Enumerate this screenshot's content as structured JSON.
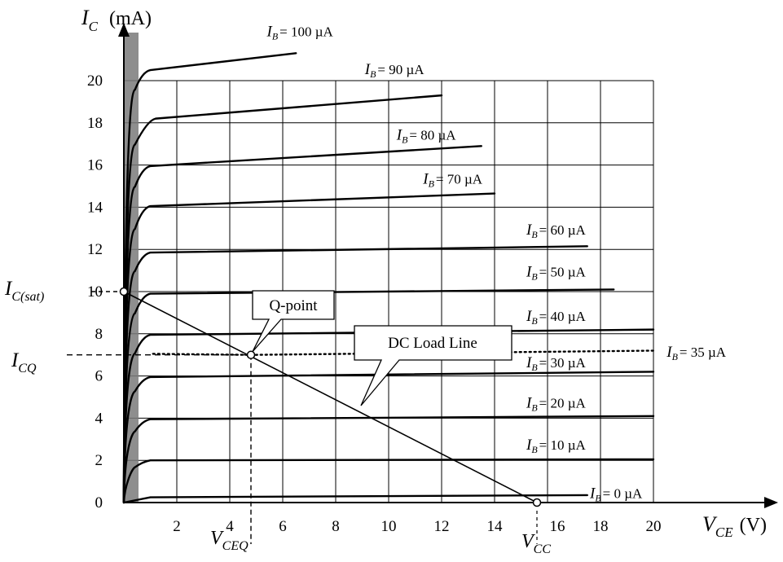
{
  "chart_data": {
    "type": "line",
    "title": "",
    "xlabel": {
      "symbol": "V",
      "subscript": "CE",
      "unit": "(V)"
    },
    "ylabel": {
      "symbol": "I",
      "subscript": "C",
      "unit": "(mA)"
    },
    "xlim": [
      0,
      21
    ],
    "ylim": [
      0,
      21
    ],
    "x_ticks": [
      2,
      4,
      6,
      8,
      10,
      12,
      14,
      16,
      18,
      20
    ],
    "y_ticks": [
      0,
      2,
      4,
      6,
      8,
      10,
      12,
      14,
      16,
      18,
      20
    ],
    "grid": true,
    "series": [
      {
        "name": "I_B = 0 µA",
        "label_text": "= 0 µA",
        "label_x": 17.6,
        "label_y": 0.4,
        "points": [
          [
            0,
            0
          ],
          [
            1,
            0.25
          ],
          [
            17.5,
            0.35
          ]
        ]
      },
      {
        "name": "I_B = 10 µA",
        "label_text": "= 10 µA",
        "label_x": 15.2,
        "label_y": 2.7,
        "points": [
          [
            0,
            0
          ],
          [
            0.3,
            1.6
          ],
          [
            1,
            2.0
          ],
          [
            20,
            2.05
          ]
        ]
      },
      {
        "name": "I_B = 20 µA",
        "label_text": "= 20 µA",
        "label_x": 15.2,
        "label_y": 4.7,
        "points": [
          [
            0,
            0
          ],
          [
            0.3,
            3.3
          ],
          [
            1,
            3.95
          ],
          [
            20,
            4.1
          ]
        ]
      },
      {
        "name": "I_B = 30 µA",
        "label_text": "= 30 µA",
        "label_x": 15.2,
        "label_y": 6.6,
        "points": [
          [
            0,
            0
          ],
          [
            0.3,
            5.2
          ],
          [
            1,
            5.95
          ],
          [
            20,
            6.2
          ]
        ]
      },
      {
        "name": "I_B = 35 µA",
        "label_text": "= 35 µA",
        "label_x": 20.5,
        "label_y": 7.1,
        "dotted": true,
        "points": [
          [
            1.1,
            7.05
          ],
          [
            4.8,
            7.0
          ],
          [
            20,
            7.2
          ]
        ]
      },
      {
        "name": "I_B = 40 µA",
        "label_text": "= 40 µA",
        "label_x": 15.2,
        "label_y": 8.8,
        "points": [
          [
            0,
            0
          ],
          [
            0.3,
            7.0
          ],
          [
            1,
            7.95
          ],
          [
            20,
            8.2
          ]
        ]
      },
      {
        "name": "I_B = 50 µA",
        "label_text": "= 50 µA",
        "label_x": 15.2,
        "label_y": 10.9,
        "points": [
          [
            0,
            0
          ],
          [
            0.3,
            8.9
          ],
          [
            1,
            9.9
          ],
          [
            18.5,
            10.1
          ]
        ]
      },
      {
        "name": "I_B = 60 µA",
        "label_text": "= 60 µA",
        "label_x": 15.2,
        "label_y": 12.9,
        "points": [
          [
            0,
            0
          ],
          [
            0.3,
            10.9
          ],
          [
            1,
            11.85
          ],
          [
            17.5,
            12.15
          ]
        ]
      },
      {
        "name": "I_B = 70 µA",
        "label_text": "= 70 µA",
        "label_x": 11.3,
        "label_y": 15.3,
        "points": [
          [
            0,
            0
          ],
          [
            0.3,
            12.9
          ],
          [
            1,
            14.05
          ],
          [
            14,
            14.65
          ]
        ]
      },
      {
        "name": "I_B = 80 µA",
        "label_text": "= 80 µA",
        "label_x": 10.3,
        "label_y": 17.4,
        "points": [
          [
            0,
            0
          ],
          [
            0.3,
            14.9
          ],
          [
            1,
            15.95
          ],
          [
            13.5,
            16.9
          ]
        ]
      },
      {
        "name": "I_B = 90 µA",
        "label_text": "= 90 µA",
        "label_x": 9.1,
        "label_y": 20.5,
        "points": [
          [
            0,
            0
          ],
          [
            0.3,
            16.9
          ],
          [
            1.2,
            18.2
          ],
          [
            12,
            19.3
          ]
        ]
      },
      {
        "name": "I_B = 100 µA",
        "label_text": "= 100 µA",
        "label_x": 5.4,
        "label_y": 22.3,
        "points": [
          [
            0,
            0
          ],
          [
            0.3,
            19.5
          ],
          [
            1.0,
            20.5
          ],
          [
            6.5,
            21.3
          ]
        ]
      }
    ],
    "load_line": {
      "name": "DC Load Line",
      "points": [
        [
          0,
          10
        ],
        [
          15.6,
          0
        ]
      ]
    },
    "q_point": {
      "label": "Q-point",
      "x": 4.8,
      "y": 7.0
    },
    "annotations": {
      "ic_sat": {
        "symbol": "I",
        "subscript": "C(sat)",
        "value": 10
      },
      "icq": {
        "symbol": "I",
        "subscript": "CQ",
        "value": 7.0
      },
      "vceq": {
        "symbol": "V",
        "subscript": "CEQ",
        "value": 4.8
      },
      "vcc": {
        "symbol": "V",
        "subscript": "CC",
        "value": 15.6
      },
      "ib_symbol": "I",
      "ib_subscript": "B"
    }
  }
}
